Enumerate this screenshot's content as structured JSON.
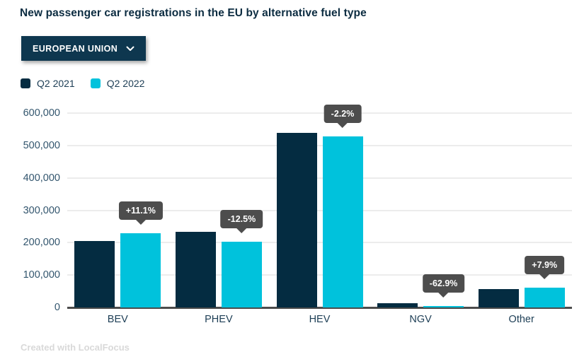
{
  "title": "New passenger car registrations in the EU by alternative fuel type",
  "region_selector": {
    "label": "EUROPEAN UNION",
    "icon": "chevron-down-icon"
  },
  "legend": [
    {
      "label": "Q2 2021",
      "color": "#042c41"
    },
    {
      "label": "Q2 2022",
      "color": "#00c2dc"
    }
  ],
  "footer": {
    "credit": "Created with LocalFocus"
  },
  "colors": {
    "title": "#0c2c41",
    "series_2021": "#042c41",
    "series_2022": "#00c2dc",
    "button_bg": "#0e374f",
    "tooltip_bg": "#4d4d4d",
    "gridline": "#ececec",
    "axis_line": "#4c4c4c",
    "tick_label": "#33566e"
  },
  "chart_data": {
    "type": "bar",
    "title": "New passenger car registrations in the EU by alternative fuel type",
    "categories": [
      "BEV",
      "PHEV",
      "HEV",
      "NGV",
      "Other"
    ],
    "series": [
      {
        "name": "Q2 2021",
        "color": "#042c41",
        "values": [
          206000,
          233000,
          540000,
          14000,
          57500
        ]
      },
      {
        "name": "Q2 2022",
        "color": "#00c2dc",
        "values": [
          229000,
          204000,
          528000,
          5200,
          62000
        ]
      }
    ],
    "change_labels": [
      "+11.1%",
      "-12.5%",
      "-2.2%",
      "-62.9%",
      "+7.9%"
    ],
    "xlabel": "",
    "ylabel": "",
    "ylim": [
      0,
      600000
    ],
    "ytick_interval": 100000,
    "ytick_labels": [
      "0",
      "100,000",
      "200,000",
      "300,000",
      "400,000",
      "500,000",
      "600,000"
    ],
    "grid": true,
    "legend_position": "top-left"
  }
}
